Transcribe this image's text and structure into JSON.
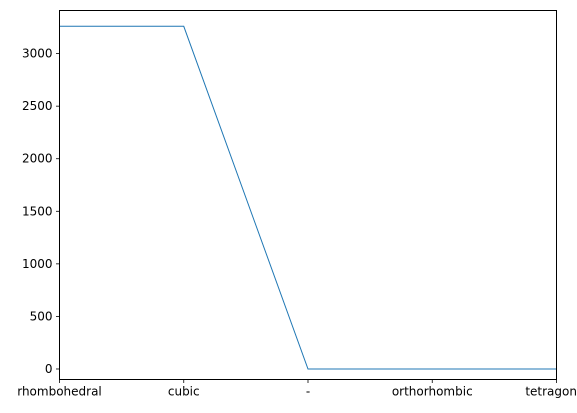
{
  "chart_data": {
    "type": "line",
    "categories": [
      "rhombohedral",
      "cubic",
      "-",
      "orthorhombic",
      "tetragonal"
    ],
    "series": [
      {
        "values": [
          3260,
          3260,
          0,
          0,
          0
        ],
        "color": "#1f77b4"
      }
    ],
    "ylim": [
      -100,
      3410
    ],
    "yticks": [
      0,
      500,
      1000,
      1500,
      2000,
      2500,
      3000
    ],
    "ytick_labels": [
      "0",
      "500",
      "1000",
      "1500",
      "2000",
      "2500",
      "3000"
    ],
    "grid": false,
    "legend": false
  }
}
